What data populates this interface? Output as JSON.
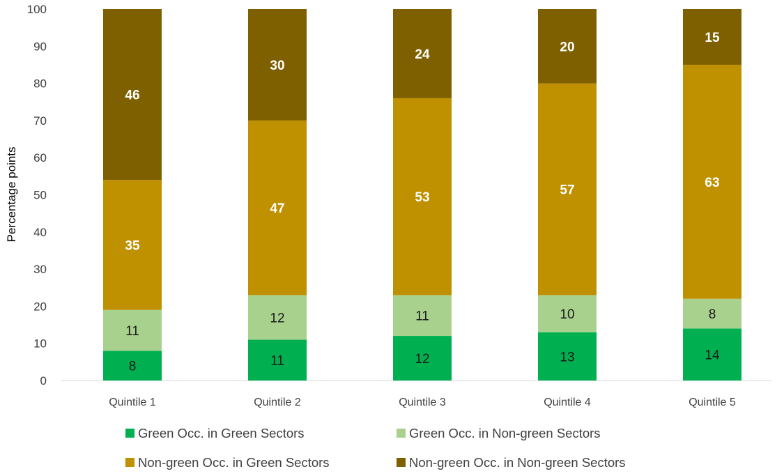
{
  "chart_data": {
    "type": "bar",
    "stacked": true,
    "categories": [
      "Quintile 1",
      "Quintile 2",
      "Quintile 3",
      "Quintile 4",
      "Quintile 5"
    ],
    "ylabel": "Percentage points",
    "ylim": [
      0,
      100
    ],
    "yticks": [
      0,
      10,
      20,
      30,
      40,
      50,
      60,
      70,
      80,
      90,
      100
    ],
    "grid": false,
    "legend_position": "bottom",
    "series": [
      {
        "name": "Green Occ. in Green Sectors",
        "color": "#00b050",
        "label_color": "#1a1a1a",
        "label_bold": false,
        "values": [
          8,
          11,
          12,
          13,
          14
        ],
        "labels": [
          "8",
          "11",
          "12",
          "13",
          "14"
        ]
      },
      {
        "name": "Green Occ. in Non-green Sectors",
        "color": "#a9d18e",
        "label_color": "#1a1a1a",
        "label_bold": false,
        "values": [
          11,
          12,
          11,
          10,
          8
        ],
        "labels": [
          "11",
          "12",
          "11",
          "10",
          "8"
        ]
      },
      {
        "name": "Non-green Occ. in Green Sectors",
        "color": "#bf9000",
        "label_color": "#ffffff",
        "label_bold": true,
        "values": [
          35,
          47,
          53,
          57,
          63
        ],
        "labels": [
          "35",
          "47",
          "53",
          "57",
          "63"
        ]
      },
      {
        "name": "Non-green Occ. in Non-green Sectors",
        "color": "#7f6000",
        "label_color": "#ffffff",
        "label_bold": true,
        "values": [
          46,
          30,
          24,
          20,
          15
        ],
        "labels": [
          "46",
          "30",
          "24",
          "20",
          "15"
        ]
      }
    ]
  }
}
